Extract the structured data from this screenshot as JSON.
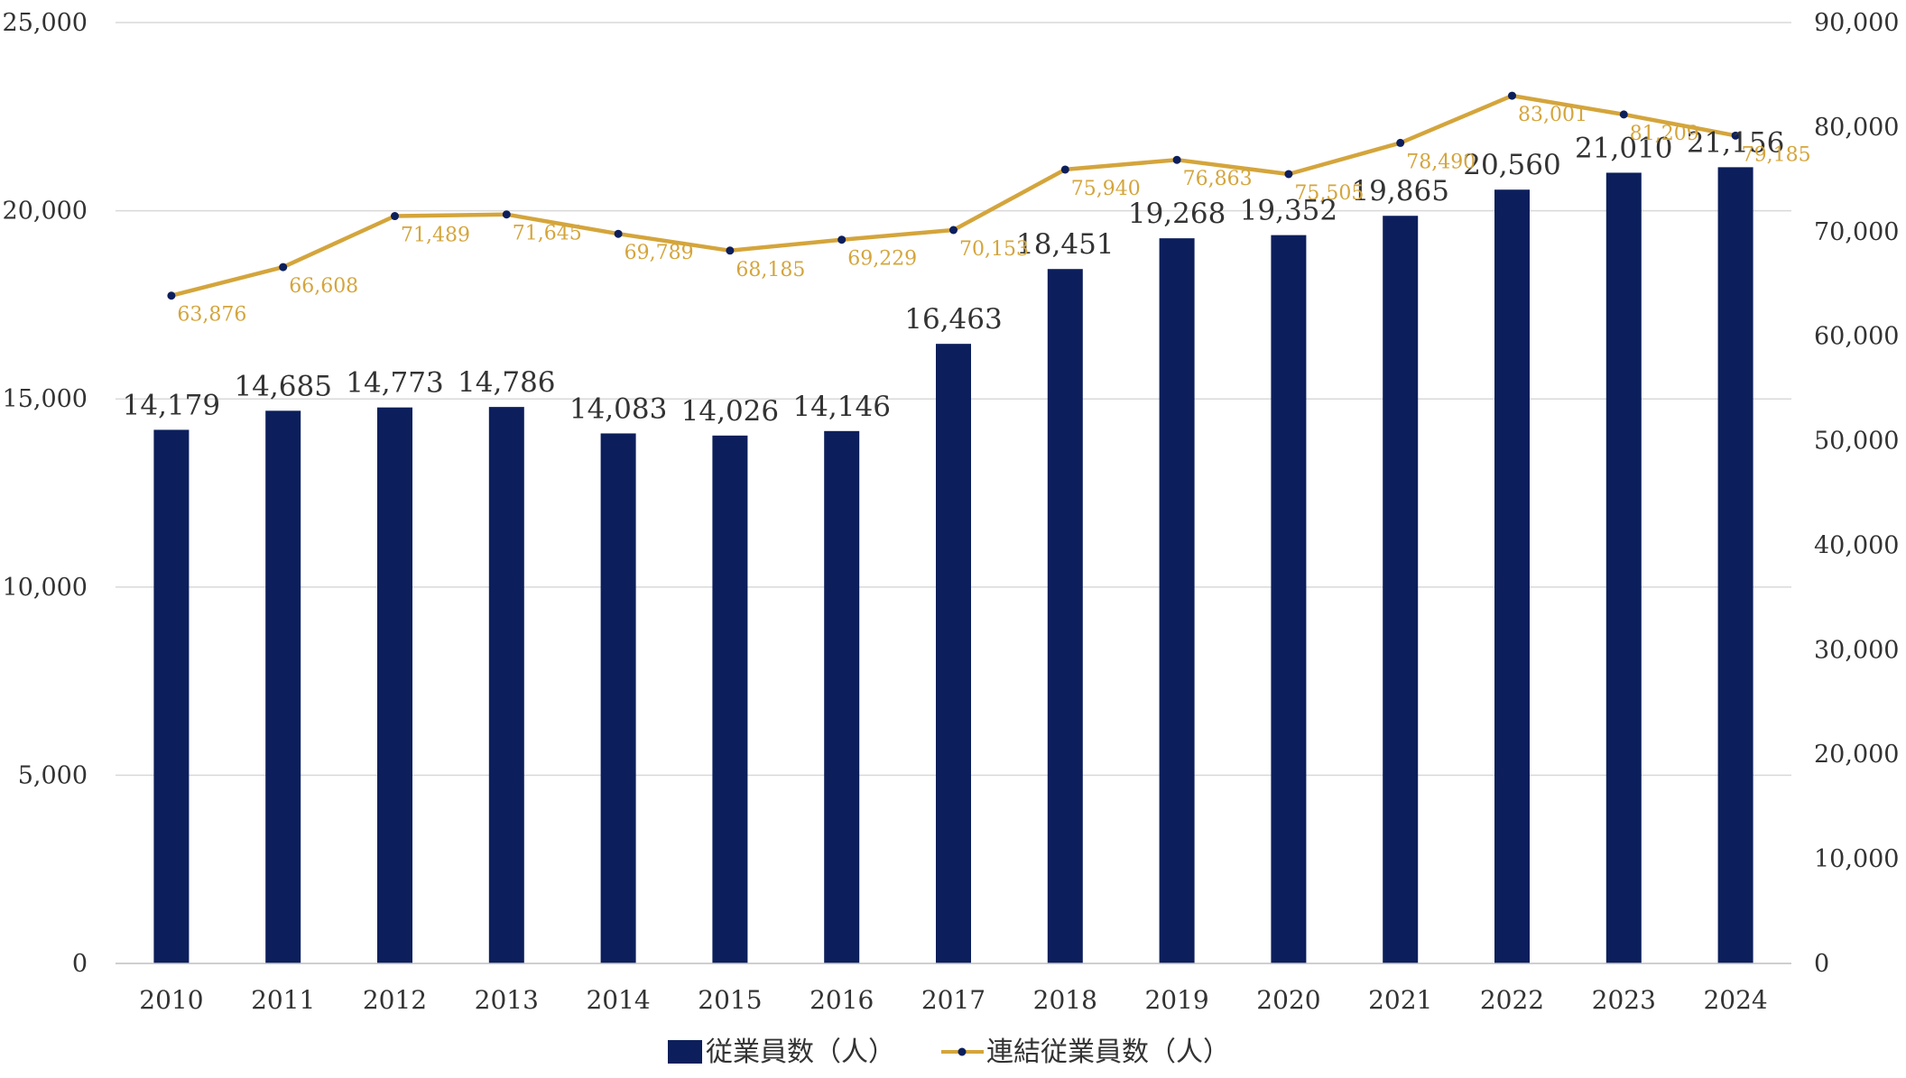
{
  "chart_data": {
    "type": "bar",
    "categories": [
      "2010",
      "2011",
      "2012",
      "2013",
      "2014",
      "2015",
      "2016",
      "2017",
      "2018",
      "2019",
      "2020",
      "2021",
      "2022",
      "2023",
      "2024"
    ],
    "series": [
      {
        "name": "従業員数（人）",
        "type": "bar",
        "axis": "left",
        "color": "#0c1f5c",
        "values": [
          14179,
          14685,
          14773,
          14786,
          14083,
          14026,
          14146,
          16463,
          18451,
          19268,
          19352,
          19865,
          20560,
          21010,
          21156
        ],
        "labels": [
          "14,179",
          "14,685",
          "14,773",
          "14,786",
          "14,083",
          "14,026",
          "14,146",
          "16,463",
          "18,451",
          "19,268",
          "19,352",
          "19,865",
          "20,560",
          "21,010",
          "21,156"
        ]
      },
      {
        "name": "連結従業員数（人）",
        "type": "line",
        "axis": "right",
        "color": "#d4a53c",
        "marker_color": "#0c1f5c",
        "values": [
          63876,
          66608,
          71489,
          71645,
          69789,
          68185,
          69229,
          70153,
          75940,
          76863,
          75505,
          78490,
          83001,
          81209,
          79185
        ],
        "labels": [
          "63,876",
          "66,608",
          "71,489",
          "71,645",
          "69,789",
          "68,185",
          "69,229",
          "70,153",
          "75,940",
          "76,863",
          "75,505",
          "78,490",
          "83,001",
          "81,209",
          "79,185"
        ]
      }
    ],
    "y_left": {
      "ylim": [
        0,
        25000
      ],
      "ticks": [
        "0",
        "5,000",
        "10,000",
        "15,000",
        "20,000",
        "25,000"
      ]
    },
    "y_right": {
      "ylim": [
        0,
        90000
      ],
      "ticks": [
        "0",
        "10,000",
        "20,000",
        "30,000",
        "40,000",
        "50,000",
        "60,000",
        "70,000",
        "80,000",
        "90,000"
      ]
    },
    "grid": true,
    "legend": "bottom-center"
  },
  "legend": {
    "bar_label": "従業員数（人）",
    "line_label": "連結従業員数（人）"
  }
}
